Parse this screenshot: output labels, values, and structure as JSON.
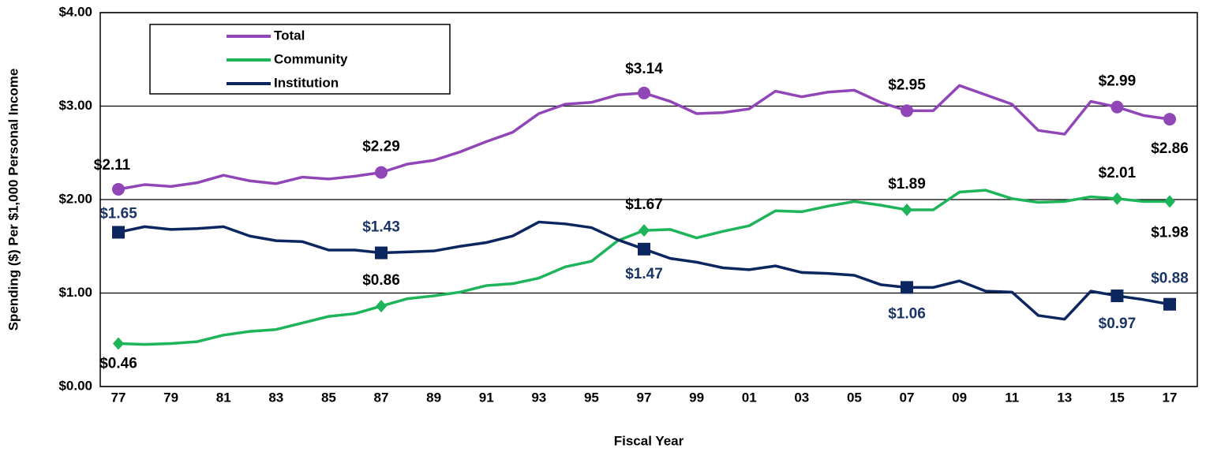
{
  "chart_data": {
    "type": "line",
    "x_label": "Fiscal Year",
    "y_label": "Spending ($) Per $1,000 Personal Income",
    "categories": [
      "77",
      null,
      "79",
      null,
      "81",
      null,
      "83",
      null,
      "85",
      null,
      "87",
      null,
      "89",
      null,
      "91",
      null,
      "93",
      null,
      "95",
      null,
      "97",
      null,
      "99",
      null,
      "01",
      null,
      "03",
      null,
      "05",
      null,
      "07",
      null,
      "09",
      null,
      "11",
      null,
      "13",
      null,
      "15",
      null,
      "17"
    ],
    "ylim": [
      0,
      4
    ],
    "yticks": [
      {
        "value": 0,
        "label": "$0.00"
      },
      {
        "value": 1,
        "label": "$1.00"
      },
      {
        "value": 2,
        "label": "$2.00"
      },
      {
        "value": 3,
        "label": "$3.00"
      },
      {
        "value": 4,
        "label": "$4.00"
      }
    ],
    "grid": true,
    "legend": "upper left",
    "series": [
      {
        "name": "Total",
        "color": "#9146b8",
        "marker": "circle",
        "values": [
          2.11,
          2.16,
          2.14,
          2.18,
          2.26,
          2.2,
          2.17,
          2.24,
          2.22,
          2.25,
          2.29,
          2.38,
          2.42,
          2.51,
          2.62,
          2.72,
          2.92,
          3.02,
          3.04,
          3.12,
          3.14,
          3.05,
          2.92,
          2.93,
          2.97,
          3.16,
          3.1,
          3.15,
          3.17,
          3.04,
          2.95,
          2.95,
          3.22,
          3.12,
          3.02,
          2.74,
          2.7,
          3.05,
          2.99,
          2.9,
          2.86
        ],
        "value_labels": [
          "$2.11",
          null,
          null,
          null,
          null,
          null,
          null,
          null,
          null,
          null,
          "$2.29",
          null,
          null,
          null,
          null,
          null,
          null,
          null,
          null,
          null,
          "$3.14",
          null,
          null,
          null,
          null,
          null,
          null,
          null,
          null,
          null,
          "$2.95",
          null,
          null,
          null,
          null,
          null,
          null,
          null,
          "$2.99",
          null,
          "$2.86"
        ]
      },
      {
        "name": "Community",
        "color": "#1db45a",
        "marker": "diamond",
        "values": [
          0.46,
          0.45,
          0.46,
          0.48,
          0.55,
          0.59,
          0.61,
          0.68,
          0.75,
          0.78,
          0.86,
          0.94,
          0.97,
          1.01,
          1.08,
          1.1,
          1.16,
          1.28,
          1.34,
          1.56,
          1.67,
          1.68,
          1.59,
          1.66,
          1.72,
          1.88,
          1.87,
          1.93,
          1.98,
          1.94,
          1.89,
          1.89,
          2.08,
          2.1,
          2.01,
          1.97,
          1.98,
          2.03,
          2.01,
          1.98,
          1.98
        ],
        "value_labels": [
          "$0.46",
          null,
          null,
          null,
          null,
          null,
          null,
          null,
          null,
          null,
          "$0.86",
          null,
          null,
          null,
          null,
          null,
          null,
          null,
          null,
          null,
          "$1.67",
          null,
          null,
          null,
          null,
          null,
          null,
          null,
          null,
          null,
          "$1.89",
          null,
          null,
          null,
          null,
          null,
          null,
          null,
          "$2.01",
          null,
          "$1.98"
        ]
      },
      {
        "name": "Institution",
        "color": "#0c2660",
        "marker": "square",
        "values": [
          1.65,
          1.71,
          1.68,
          1.69,
          1.71,
          1.61,
          1.56,
          1.55,
          1.46,
          1.46,
          1.43,
          1.44,
          1.45,
          1.5,
          1.54,
          1.61,
          1.76,
          1.74,
          1.7,
          1.57,
          1.47,
          1.37,
          1.33,
          1.27,
          1.25,
          1.29,
          1.22,
          1.21,
          1.19,
          1.09,
          1.06,
          1.06,
          1.13,
          1.02,
          1.01,
          0.76,
          0.72,
          1.02,
          0.97,
          0.93,
          0.88
        ],
        "value_labels": [
          "$1.65",
          null,
          null,
          null,
          null,
          null,
          null,
          null,
          null,
          null,
          "$1.43",
          null,
          null,
          null,
          null,
          null,
          null,
          null,
          null,
          null,
          "$1.47",
          null,
          null,
          null,
          null,
          null,
          null,
          null,
          null,
          null,
          "$1.06",
          null,
          null,
          null,
          null,
          null,
          null,
          null,
          "$0.97",
          null,
          "$0.88"
        ]
      }
    ]
  }
}
